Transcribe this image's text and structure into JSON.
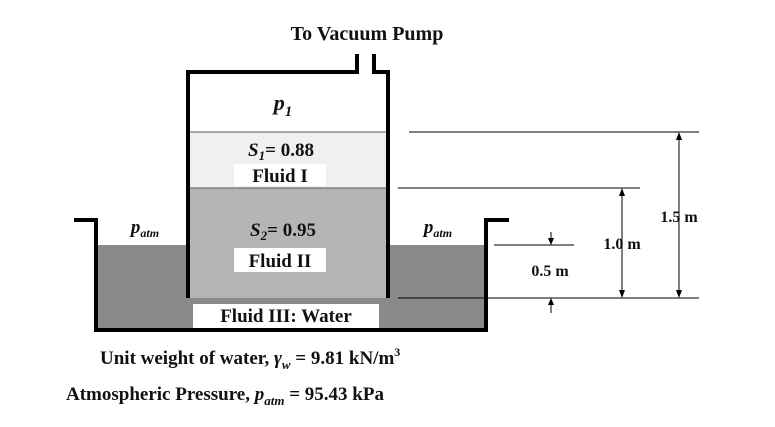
{
  "title": "To Vacuum Pump",
  "chamber": {
    "pressure_label": "p",
    "pressure_subscript": "1"
  },
  "fluid_1": {
    "sg_symbol": "S",
    "sg_subscript": "1",
    "sg_value": "= 0.88",
    "name": "Fluid I",
    "color": "#f0f0f0"
  },
  "fluid_2": {
    "sg_symbol": "S",
    "sg_subscript": "2",
    "sg_value": "= 0.95",
    "name": "Fluid II",
    "color": "#b5b5b5"
  },
  "fluid_3": {
    "name": "Fluid III: Water",
    "color": "#8a8a8a"
  },
  "atm_label": {
    "symbol": "p",
    "subscript": "atm"
  },
  "dimensions": {
    "d_05": "0.5 m",
    "d_10": "1.0 m",
    "d_15": "1.5 m"
  },
  "notes": {
    "unit_weight_prefix": "Unit weight of water, ",
    "unit_weight_symbol": "γ",
    "unit_weight_subscript": "w",
    "unit_weight_value": " = 9.81 kN/m",
    "unit_weight_exponent": "3",
    "atm_prefix": "Atmospheric Pressure, ",
    "atm_symbol": "p",
    "atm_subscript": "atm",
    "atm_value": " = 95.43 kPa"
  }
}
